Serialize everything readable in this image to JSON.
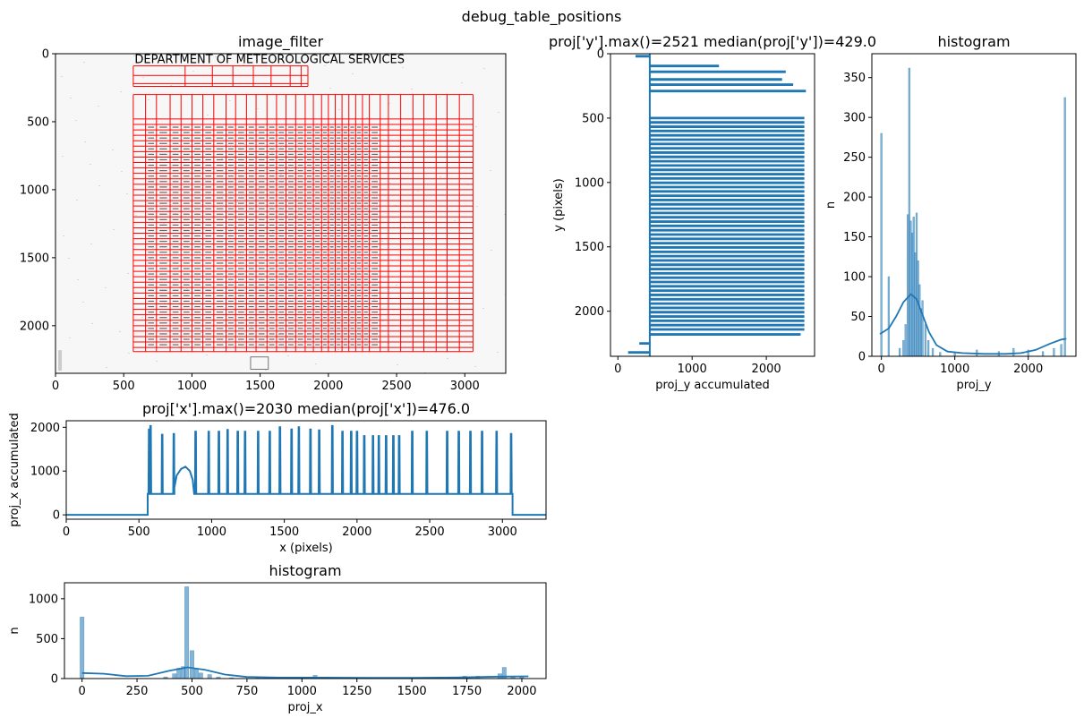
{
  "figure": {
    "suptitle": "debug_table_positions"
  },
  "chart_data": [
    {
      "id": "image_filter",
      "type": "table",
      "title": "image_filter",
      "xlabel": "",
      "ylabel": "",
      "xlim": [
        0,
        3300
      ],
      "ylim": [
        2350,
        0
      ],
      "xticks": [
        0,
        500,
        1000,
        1500,
        2000,
        2500,
        3000
      ],
      "yticks": [
        0,
        500,
        1000,
        1500,
        2000
      ],
      "header_label": "DEPARTMENT OF METEOROLOGICAL SERVICES",
      "grid_color": "#ff0000",
      "table_x": [
        570,
        660,
        740,
        840,
        920,
        1000,
        1080,
        1160,
        1250,
        1320,
        1400,
        1470,
        1550,
        1620,
        1690,
        1760,
        1830,
        1890,
        1950,
        2000,
        2050,
        2100,
        2150,
        2200,
        2250,
        2300,
        2380,
        2440,
        2530,
        2620,
        2700,
        2790,
        2870,
        2960,
        3060
      ],
      "table_y": [
        300,
        480,
        520,
        560,
        600,
        640,
        680,
        720,
        760,
        800,
        840,
        880,
        920,
        960,
        1000,
        1040,
        1080,
        1120,
        1160,
        1200,
        1240,
        1280,
        1320,
        1360,
        1400,
        1440,
        1480,
        1520,
        1560,
        1600,
        1640,
        1680,
        1720,
        1760,
        1800,
        1840,
        1880,
        1920,
        1960,
        2000,
        2040,
        2080,
        2120,
        2160,
        2190
      ]
    },
    {
      "id": "proj_y",
      "type": "line",
      "title": "proj['y'].max()=2521 median(proj['y'])=429.0",
      "xlabel": "proj_y accumulated",
      "ylabel": "y (pixels)",
      "xlim": [
        -100,
        2650
      ],
      "ylim": [
        2350,
        0
      ],
      "xticks": [
        0,
        1000,
        2000
      ],
      "yticks": [
        0,
        500,
        1000,
        1500,
        2000
      ],
      "color": "#1f77b4",
      "baseline": 429,
      "spikes": [
        {
          "y": 20,
          "v": 250
        },
        {
          "y": 95,
          "v": 1350
        },
        {
          "y": 140,
          "v": 2250
        },
        {
          "y": 200,
          "v": 2200
        },
        {
          "y": 240,
          "v": 2350
        },
        {
          "y": 290,
          "v": 2521
        },
        {
          "y": 2180,
          "v": 2450
        },
        {
          "y": 2250,
          "v": 300
        },
        {
          "y": 2320,
          "v": 150
        }
      ],
      "table_spike_start": 500,
      "table_spike_end": 2150,
      "table_spike_step": 33.5,
      "table_spike_value": 2500
    },
    {
      "id": "hist_y",
      "type": "bar",
      "title": "histogram",
      "xlabel": "proj_y",
      "ylabel": "n",
      "xlim": [
        -130,
        2650
      ],
      "ylim": [
        0,
        380
      ],
      "xticks": [
        0,
        1000,
        2000
      ],
      "yticks": [
        0,
        50,
        100,
        150,
        200,
        250,
        300,
        350
      ],
      "color": "#1f77b4",
      "bins": [
        {
          "x": 0,
          "n": 280
        },
        {
          "x": 100,
          "n": 100
        },
        {
          "x": 250,
          "n": 10
        },
        {
          "x": 300,
          "n": 20
        },
        {
          "x": 330,
          "n": 40
        },
        {
          "x": 360,
          "n": 178
        },
        {
          "x": 380,
          "n": 362
        },
        {
          "x": 400,
          "n": 170
        },
        {
          "x": 420,
          "n": 155
        },
        {
          "x": 440,
          "n": 175
        },
        {
          "x": 460,
          "n": 130
        },
        {
          "x": 480,
          "n": 180
        },
        {
          "x": 500,
          "n": 120
        },
        {
          "x": 520,
          "n": 90
        },
        {
          "x": 540,
          "n": 60
        },
        {
          "x": 560,
          "n": 70
        },
        {
          "x": 600,
          "n": 40
        },
        {
          "x": 640,
          "n": 20
        },
        {
          "x": 700,
          "n": 10
        },
        {
          "x": 800,
          "n": 5
        },
        {
          "x": 1000,
          "n": 5
        },
        {
          "x": 1300,
          "n": 8
        },
        {
          "x": 1600,
          "n": 6
        },
        {
          "x": 1800,
          "n": 10
        },
        {
          "x": 2000,
          "n": 8
        },
        {
          "x": 2200,
          "n": 6
        },
        {
          "x": 2350,
          "n": 10
        },
        {
          "x": 2450,
          "n": 15
        },
        {
          "x": 2500,
          "n": 325
        }
      ],
      "kde": [
        {
          "x": -20,
          "n": 28
        },
        {
          "x": 100,
          "n": 35
        },
        {
          "x": 200,
          "n": 50
        },
        {
          "x": 300,
          "n": 68
        },
        {
          "x": 400,
          "n": 78
        },
        {
          "x": 480,
          "n": 72
        },
        {
          "x": 560,
          "n": 52
        },
        {
          "x": 650,
          "n": 30
        },
        {
          "x": 750,
          "n": 14
        },
        {
          "x": 900,
          "n": 6
        },
        {
          "x": 1100,
          "n": 4
        },
        {
          "x": 1400,
          "n": 3
        },
        {
          "x": 1700,
          "n": 3
        },
        {
          "x": 1900,
          "n": 4
        },
        {
          "x": 2100,
          "n": 8
        },
        {
          "x": 2300,
          "n": 16
        },
        {
          "x": 2450,
          "n": 21
        },
        {
          "x": 2520,
          "n": 22
        }
      ]
    },
    {
      "id": "proj_x",
      "type": "line",
      "title": "proj['x'].max()=2030 median(proj['x'])=476.0",
      "xlabel": "x (pixels)",
      "ylabel": "proj_x accumulated",
      "xlim": [
        0,
        3300
      ],
      "ylim": [
        -100,
        2150
      ],
      "xticks": [
        0,
        500,
        1000,
        1500,
        2000,
        2500,
        3000
      ],
      "yticks": [
        0,
        1000,
        2000
      ],
      "color": "#1f77b4",
      "baseline": 476,
      "start": 560,
      "end": 3070,
      "spikes": [
        {
          "x": 570,
          "v": 1950
        },
        {
          "x": 580,
          "v": 2030
        },
        {
          "x": 660,
          "v": 1830
        },
        {
          "x": 740,
          "v": 1850
        },
        {
          "x": 890,
          "v": 1900
        },
        {
          "x": 980,
          "v": 1900
        },
        {
          "x": 1050,
          "v": 1900
        },
        {
          "x": 1110,
          "v": 1940
        },
        {
          "x": 1180,
          "v": 1900
        },
        {
          "x": 1230,
          "v": 1900
        },
        {
          "x": 1320,
          "v": 1900
        },
        {
          "x": 1400,
          "v": 1900
        },
        {
          "x": 1470,
          "v": 2000
        },
        {
          "x": 1550,
          "v": 1950
        },
        {
          "x": 1600,
          "v": 2000
        },
        {
          "x": 1680,
          "v": 1950
        },
        {
          "x": 1740,
          "v": 1930
        },
        {
          "x": 1830,
          "v": 2030
        },
        {
          "x": 1900,
          "v": 1900
        },
        {
          "x": 1960,
          "v": 1900
        },
        {
          "x": 2000,
          "v": 1900
        },
        {
          "x": 2050,
          "v": 1800
        },
        {
          "x": 2110,
          "v": 1800
        },
        {
          "x": 2150,
          "v": 1800
        },
        {
          "x": 2200,
          "v": 1800
        },
        {
          "x": 2250,
          "v": 1800
        },
        {
          "x": 2290,
          "v": 1800
        },
        {
          "x": 2380,
          "v": 1900
        },
        {
          "x": 2480,
          "v": 1900
        },
        {
          "x": 2620,
          "v": 1900
        },
        {
          "x": 2700,
          "v": 1900
        },
        {
          "x": 2780,
          "v": 1900
        },
        {
          "x": 2860,
          "v": 1900
        },
        {
          "x": 2960,
          "v": 1900
        },
        {
          "x": 3060,
          "v": 1850
        }
      ],
      "bump": [
        {
          "x": 735,
          "v": 476
        },
        {
          "x": 760,
          "v": 900
        },
        {
          "x": 790,
          "v": 1050
        },
        {
          "x": 820,
          "v": 1100
        },
        {
          "x": 850,
          "v": 1000
        },
        {
          "x": 870,
          "v": 800
        },
        {
          "x": 880,
          "v": 476
        }
      ]
    },
    {
      "id": "hist_x",
      "type": "bar",
      "title": "histogram",
      "xlabel": "proj_x",
      "ylabel": "n",
      "xlim": [
        -80,
        2110
      ],
      "ylim": [
        0,
        1200
      ],
      "xticks": [
        0,
        250,
        500,
        750,
        1000,
        1250,
        1500,
        1750,
        2000
      ],
      "xtick_labels": [
        "0",
        "250",
        "500",
        "750",
        "1000",
        "1250",
        "1500",
        "1750",
        "2000"
      ],
      "yticks": [
        0,
        500,
        1000
      ],
      "color": "#1f77b4",
      "bins": [
        {
          "x": 0,
          "n": 770
        },
        {
          "x": 380,
          "n": 20
        },
        {
          "x": 420,
          "n": 60
        },
        {
          "x": 440,
          "n": 130
        },
        {
          "x": 460,
          "n": 150
        },
        {
          "x": 476,
          "n": 1150
        },
        {
          "x": 500,
          "n": 350
        },
        {
          "x": 520,
          "n": 120
        },
        {
          "x": 540,
          "n": 70
        },
        {
          "x": 580,
          "n": 50
        },
        {
          "x": 620,
          "n": 20
        },
        {
          "x": 680,
          "n": 10
        },
        {
          "x": 800,
          "n": 10
        },
        {
          "x": 1060,
          "n": 40
        },
        {
          "x": 1200,
          "n": 10
        },
        {
          "x": 1500,
          "n": 8
        },
        {
          "x": 1740,
          "n": 30
        },
        {
          "x": 1800,
          "n": 30
        },
        {
          "x": 1900,
          "n": 60
        },
        {
          "x": 1920,
          "n": 140
        },
        {
          "x": 1960,
          "n": 30
        },
        {
          "x": 2000,
          "n": 30
        }
      ],
      "kde": [
        {
          "x": 0,
          "n": 70
        },
        {
          "x": 100,
          "n": 60
        },
        {
          "x": 200,
          "n": 30
        },
        {
          "x": 300,
          "n": 35
        },
        {
          "x": 400,
          "n": 100
        },
        {
          "x": 480,
          "n": 140
        },
        {
          "x": 560,
          "n": 110
        },
        {
          "x": 650,
          "n": 50
        },
        {
          "x": 750,
          "n": 20
        },
        {
          "x": 900,
          "n": 12
        },
        {
          "x": 1100,
          "n": 12
        },
        {
          "x": 1300,
          "n": 10
        },
        {
          "x": 1500,
          "n": 10
        },
        {
          "x": 1700,
          "n": 14
        },
        {
          "x": 1900,
          "n": 25
        },
        {
          "x": 2030,
          "n": 28
        }
      ]
    }
  ]
}
